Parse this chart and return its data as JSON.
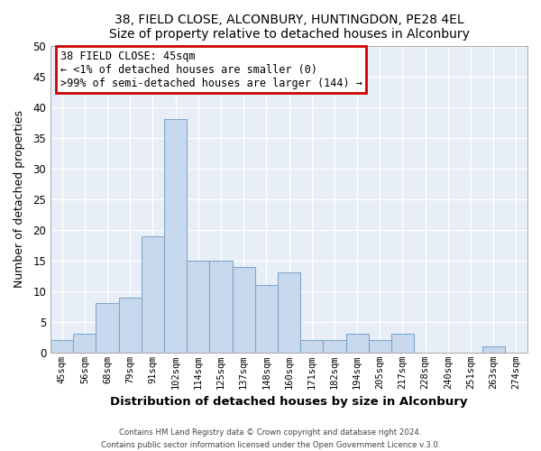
{
  "title1": "38, FIELD CLOSE, ALCONBURY, HUNTINGDON, PE28 4EL",
  "title2": "Size of property relative to detached houses in Alconbury",
  "xlabel": "Distribution of detached houses by size in Alconbury",
  "ylabel": "Number of detached properties",
  "bar_color": "#c8d8ed",
  "bar_edge_color": "#7fa8cc",
  "bg_color": "#e8eef8",
  "grid_color": "#ffffff",
  "categories": [
    "45sqm",
    "56sqm",
    "68sqm",
    "79sqm",
    "91sqm",
    "102sqm",
    "114sqm",
    "125sqm",
    "137sqm",
    "148sqm",
    "160sqm",
    "171sqm",
    "182sqm",
    "194sqm",
    "205sqm",
    "217sqm",
    "228sqm",
    "240sqm",
    "251sqm",
    "263sqm",
    "274sqm"
  ],
  "values": [
    2,
    3,
    8,
    9,
    19,
    38,
    15,
    15,
    14,
    11,
    13,
    2,
    2,
    3,
    2,
    3,
    0,
    0,
    0,
    1,
    0
  ],
  "ylim": [
    0,
    50
  ],
  "yticks": [
    0,
    5,
    10,
    15,
    20,
    25,
    30,
    35,
    40,
    45,
    50
  ],
  "annotation_title": "38 FIELD CLOSE: 45sqm",
  "annotation_line1": "← <1% of detached houses are smaller (0)",
  "annotation_line2": ">99% of semi-detached houses are larger (144) →",
  "annotation_box_color": "#ffffff",
  "annotation_box_edge": "#cc0000",
  "footer1": "Contains HM Land Registry data © Crown copyright and database right 2024.",
  "footer2": "Contains public sector information licensed under the Open Government Licence v.3.0."
}
